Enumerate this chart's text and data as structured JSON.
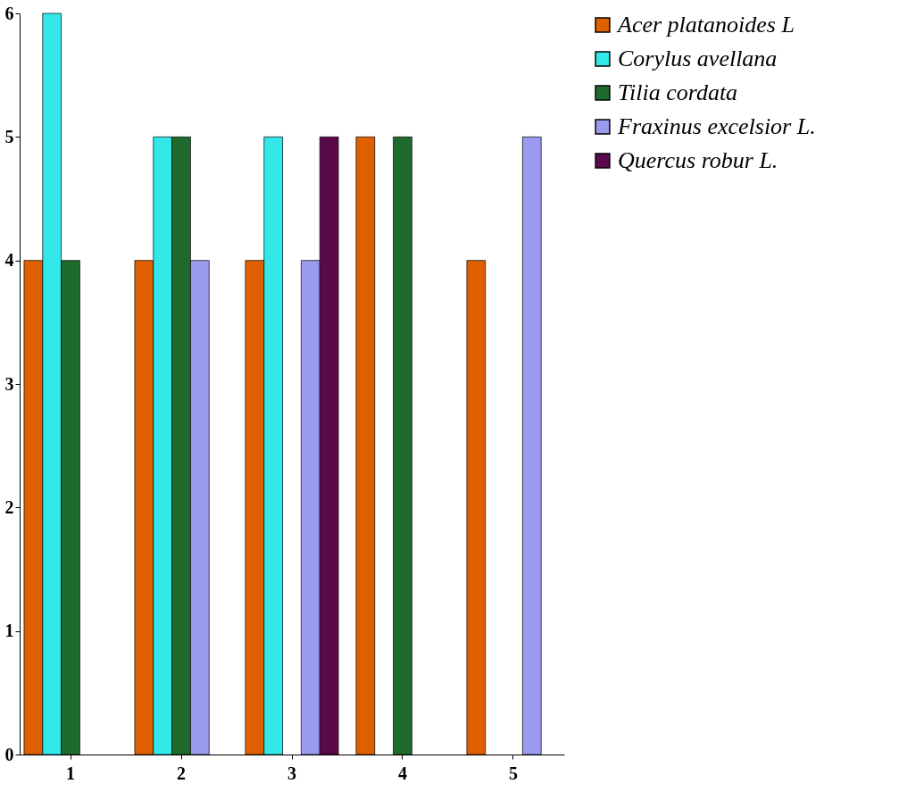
{
  "chart_data": {
    "type": "bar",
    "categories": [
      "1",
      "2",
      "3",
      "4",
      "5"
    ],
    "series": [
      {
        "name": "Acer platanoides L",
        "color": "#e06000",
        "values": [
          4,
          4,
          4,
          5,
          4
        ]
      },
      {
        "name": "Corylus avellana",
        "color": "#33e8e8",
        "values": [
          6,
          5,
          5,
          null,
          null
        ]
      },
      {
        "name": "Tilia cordata",
        "color": "#1f6b2e",
        "values": [
          4,
          5,
          null,
          5,
          null
        ]
      },
      {
        "name": "Fraxinus excelsior L.",
        "color": "#9a9aee",
        "values": [
          null,
          4,
          4,
          null,
          5
        ]
      },
      {
        "name": "Quercus robur L.",
        "color": "#5a0a4a",
        "values": [
          null,
          null,
          5,
          null,
          null
        ]
      }
    ],
    "ylim": [
      0,
      6
    ],
    "yticks": [
      0,
      1,
      2,
      3,
      4,
      5,
      6
    ],
    "grid": false,
    "legend": "right"
  }
}
